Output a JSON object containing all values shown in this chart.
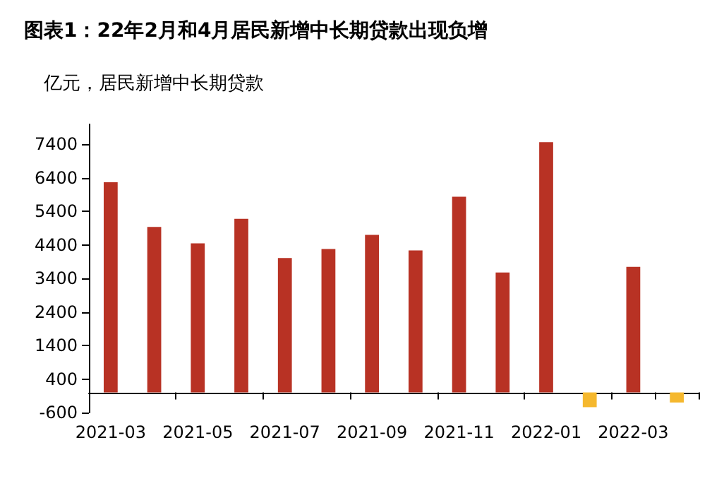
{
  "chart_data": {
    "type": "bar",
    "title": "图表1：22年2月和4月居民新增中长期贷款出现负增",
    "ylabel": "亿元，居民新增中长期贷款",
    "categories": [
      "2021-03",
      null,
      "2021-05",
      null,
      "2021-07",
      null,
      "2021-09",
      null,
      "2021-11",
      null,
      "2022-01",
      null,
      "2022-03",
      null
    ],
    "values": [
      6270,
      4940,
      4450,
      5180,
      4010,
      4280,
      4700,
      4240,
      5840,
      3580,
      7470,
      -440,
      3750,
      -300
    ],
    "colors": [
      "#b83224",
      "#b83224",
      "#b83224",
      "#b83224",
      "#b83224",
      "#b83224",
      "#b83224",
      "#b83224",
      "#b83224",
      "#b83224",
      "#b83224",
      "#f5b82e",
      "#b83224",
      "#f5b82e"
    ],
    "ylim": [
      -600,
      8000
    ],
    "yticks": [
      -600,
      400,
      1400,
      2400,
      3400,
      4400,
      5400,
      6400,
      7400
    ],
    "grid": false
  }
}
